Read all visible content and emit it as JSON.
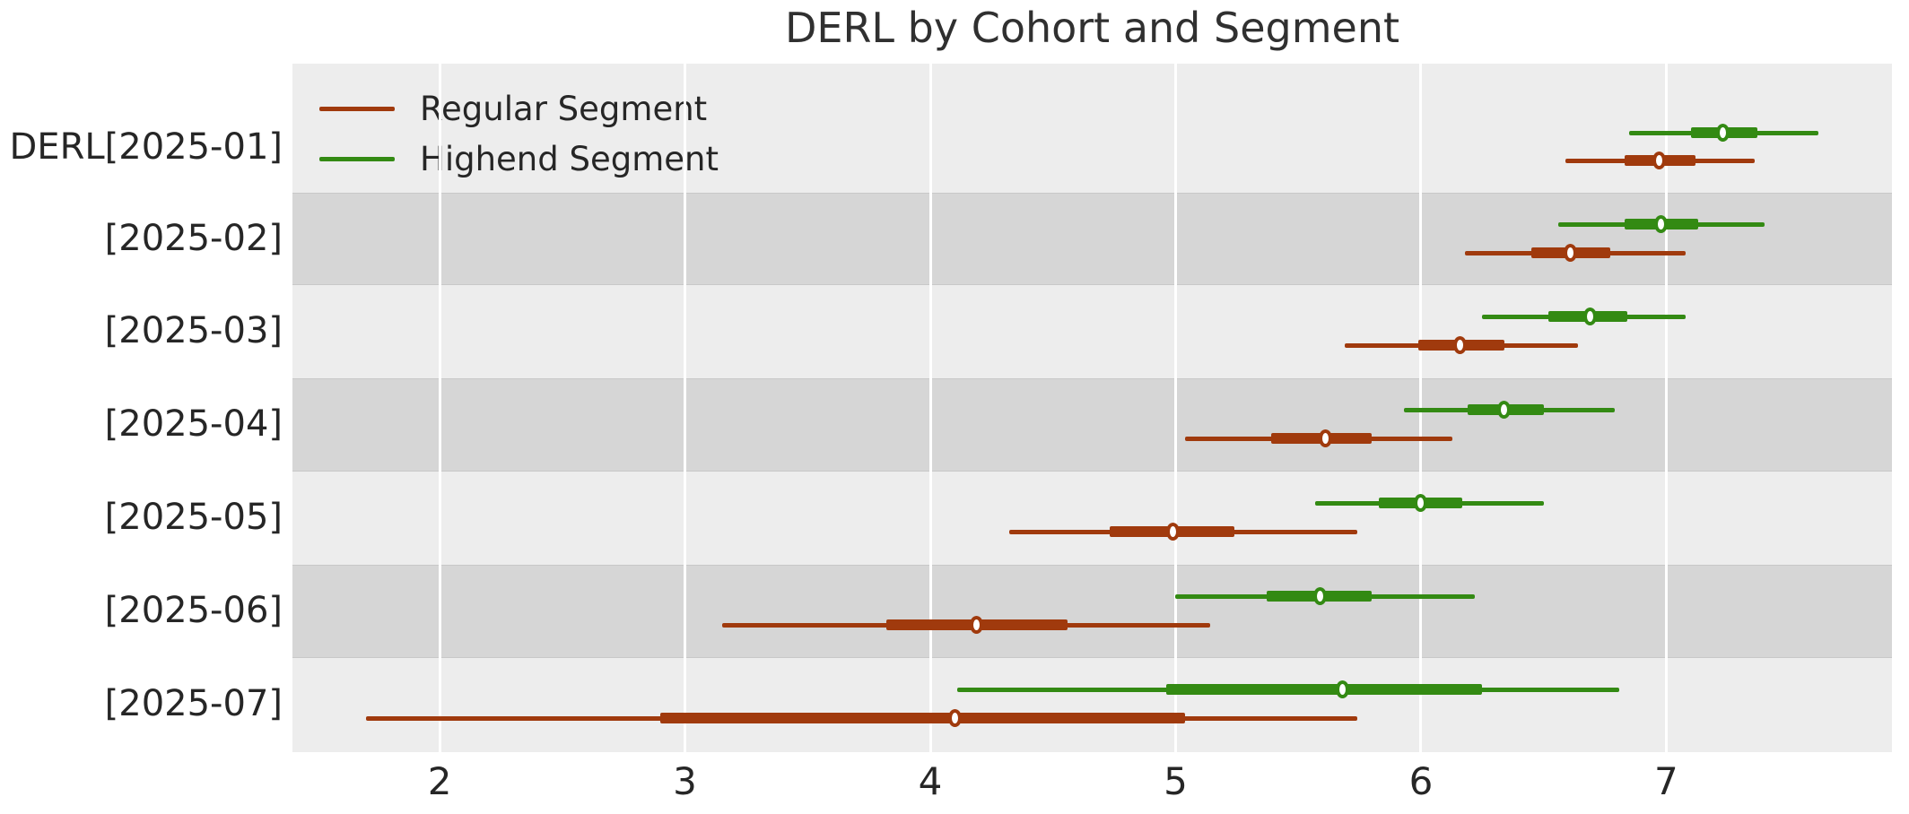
{
  "chart_data": {
    "type": "forest",
    "title": "DERL by Cohort and Segment",
    "categories": [
      "DERL[2025-01]",
      "[2025-02]",
      "[2025-03]",
      "[2025-04]",
      "[2025-05]",
      "[2025-06]",
      "[2025-07]"
    ],
    "cohorts": [
      "2025-01",
      "2025-02",
      "2025-03",
      "2025-04",
      "2025-05",
      "2025-06",
      "2025-07"
    ],
    "series": [
      {
        "name": "Regular Segment",
        "color": "#a03a0d",
        "points": [
          6.97,
          6.61,
          6.16,
          5.61,
          4.99,
          4.19,
          4.1
        ],
        "interval_outer": [
          [
            6.59,
            7.36
          ],
          [
            6.18,
            7.08
          ],
          [
            5.69,
            6.64
          ],
          [
            5.04,
            6.13
          ],
          [
            4.32,
            5.74
          ],
          [
            3.15,
            5.14
          ],
          [
            1.7,
            5.74
          ]
        ],
        "interval_inner": [
          [
            6.83,
            7.12
          ],
          [
            6.45,
            6.77
          ],
          [
            5.99,
            6.34
          ],
          [
            5.39,
            5.8
          ],
          [
            4.73,
            5.24
          ],
          [
            3.82,
            4.56
          ],
          [
            2.9,
            5.04
          ]
        ]
      },
      {
        "name": "Highend Segment",
        "color": "#338a13",
        "points": [
          7.23,
          6.98,
          6.69,
          6.34,
          6.0,
          5.59,
          5.68
        ],
        "interval_outer": [
          [
            6.85,
            7.62
          ],
          [
            6.56,
            7.4
          ],
          [
            6.25,
            7.08
          ],
          [
            5.93,
            6.79
          ],
          [
            5.57,
            6.5
          ],
          [
            5.0,
            6.22
          ],
          [
            4.11,
            6.81
          ]
        ],
        "interval_inner": [
          [
            7.1,
            7.37
          ],
          [
            6.83,
            7.13
          ],
          [
            6.52,
            6.84
          ],
          [
            6.19,
            6.5
          ],
          [
            5.83,
            6.17
          ],
          [
            5.37,
            5.8
          ],
          [
            4.96,
            6.25
          ]
        ]
      }
    ],
    "xticks": [
      "2",
      "3",
      "4",
      "5",
      "6",
      "7"
    ],
    "xlim": [
      1.4,
      7.92
    ],
    "xlabel": "",
    "ylabel": "",
    "grid": "vertical-white-gridlines",
    "legend_position": "upper-left",
    "band_colors": {
      "light": "#ededed",
      "dark": "#d6d6d6"
    },
    "background_color": "#ffffff"
  }
}
